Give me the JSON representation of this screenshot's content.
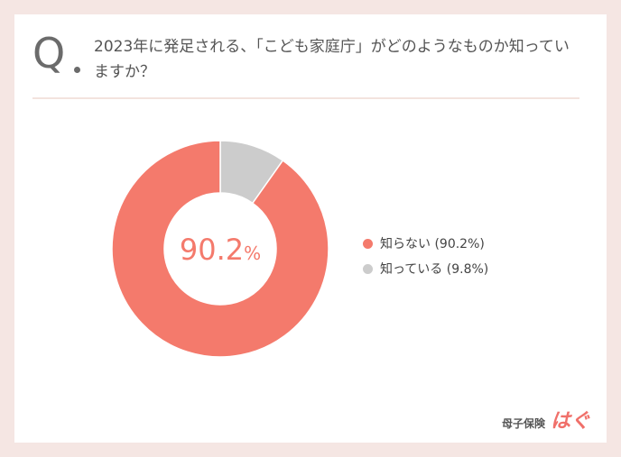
{
  "question": {
    "mark": "Q",
    "text": "2023年に発足される、「こども家庭庁」がどのようなものか知っていますか？"
  },
  "brand": {
    "main": "母子保険",
    "sub": "はぐ"
  },
  "colors": {
    "primary": "#f47a6c",
    "secondary": "#cccccc"
  },
  "chart_data": {
    "type": "pie",
    "center_label": "90.2",
    "center_unit": "%",
    "slices": [
      {
        "label": "知らない",
        "value": 90.2,
        "legend": "知らない (90.2%)",
        "color": "#f47a6c"
      },
      {
        "label": "知っている",
        "value": 9.8,
        "legend": "知っている (9.8%)",
        "color": "#cccccc"
      }
    ],
    "legend_position": "right"
  }
}
